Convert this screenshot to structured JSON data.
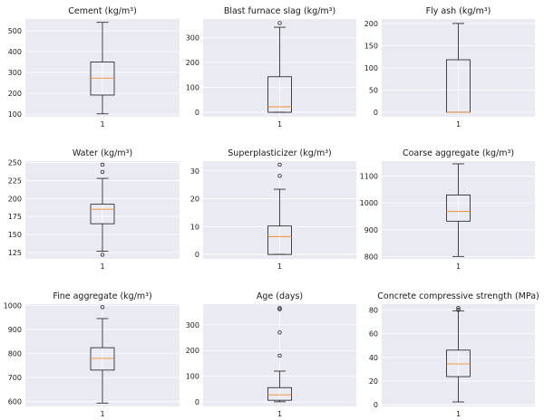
{
  "chart_data": [
    {
      "type": "box",
      "title": "Cement (kg/m³)",
      "category": "1",
      "ylim": [
        88,
        556
      ],
      "yticks": [
        100,
        200,
        300,
        400,
        500
      ],
      "stats": {
        "min": 102,
        "q1": 192,
        "median": 272.9,
        "q3": 350,
        "max": 540
      },
      "fliers": [],
      "grid": true
    },
    {
      "type": "box",
      "title": "Blast furnace slag (kg/m³)",
      "category": "1",
      "ylim": [
        -18,
        375
      ],
      "yticks": [
        0,
        100,
        200,
        300
      ],
      "stats": {
        "min": 0,
        "q1": 0,
        "median": 22,
        "q3": 142.9,
        "max": 342
      },
      "fliers": [
        359
      ],
      "grid": true
    },
    {
      "type": "box",
      "title": "Fly ash (kg/m³)",
      "category": "1",
      "ylim": [
        -10,
        210
      ],
      "yticks": [
        0,
        50,
        100,
        150,
        200
      ],
      "stats": {
        "min": 0,
        "q1": 0,
        "median": 0,
        "q3": 118.3,
        "max": 200
      },
      "fliers": [],
      "grid": true
    },
    {
      "type": "box",
      "title": "Water (kg/m³)",
      "category": "1",
      "ylim": [
        116,
        252
      ],
      "yticks": [
        125,
        150,
        175,
        200,
        225,
        250
      ],
      "stats": {
        "min": 126.6,
        "q1": 164.9,
        "median": 185,
        "q3": 192,
        "max": 228
      },
      "fliers": [
        121.8,
        237,
        247
      ],
      "grid": true
    },
    {
      "type": "box",
      "title": "Superplasticizer (kg/m³)",
      "category": "1",
      "ylim": [
        -1.6,
        33.5
      ],
      "yticks": [
        0,
        10,
        20,
        30
      ],
      "stats": {
        "min": 0,
        "q1": 0,
        "median": 6.4,
        "q3": 10.2,
        "max": 23.4
      },
      "fliers": [
        28.2,
        32.2
      ],
      "grid": true
    },
    {
      "type": "box",
      "title": "Coarse aggregate (kg/m³)",
      "category": "1",
      "ylim": [
        792,
        1155
      ],
      "yticks": [
        800,
        900,
        1000,
        1100
      ],
      "stats": {
        "min": 801,
        "q1": 932,
        "median": 968,
        "q3": 1029.4,
        "max": 1145
      },
      "fliers": [],
      "grid": true
    },
    {
      "type": "box",
      "title": "Fine aggregate (kg/m³)",
      "category": "1",
      "ylim": [
        580,
        1005
      ],
      "yticks": [
        600,
        700,
        800,
        900,
        1000
      ],
      "stats": {
        "min": 594,
        "q1": 731,
        "median": 779.5,
        "q3": 824,
        "max": 945
      },
      "fliers": [
        992.6
      ],
      "grid": true
    },
    {
      "type": "box",
      "title": "Age (days)",
      "category": "1",
      "ylim": [
        -17,
        380
      ],
      "yticks": [
        0,
        100,
        200,
        300
      ],
      "stats": {
        "min": 1,
        "q1": 7,
        "median": 28,
        "q3": 56,
        "max": 120
      },
      "fliers": [
        180,
        270,
        360,
        365
      ],
      "grid": true
    },
    {
      "type": "box",
      "title": "Concrete compressive strength (MPa)",
      "category": "1",
      "ylim": [
        -1.5,
        85
      ],
      "yticks": [
        0,
        20,
        40,
        60,
        80
      ],
      "stats": {
        "min": 2.3,
        "q1": 23.7,
        "median": 34.4,
        "q3": 46.1,
        "max": 79.4
      },
      "fliers": [
        80.2,
        81.8
      ],
      "grid": true
    }
  ]
}
